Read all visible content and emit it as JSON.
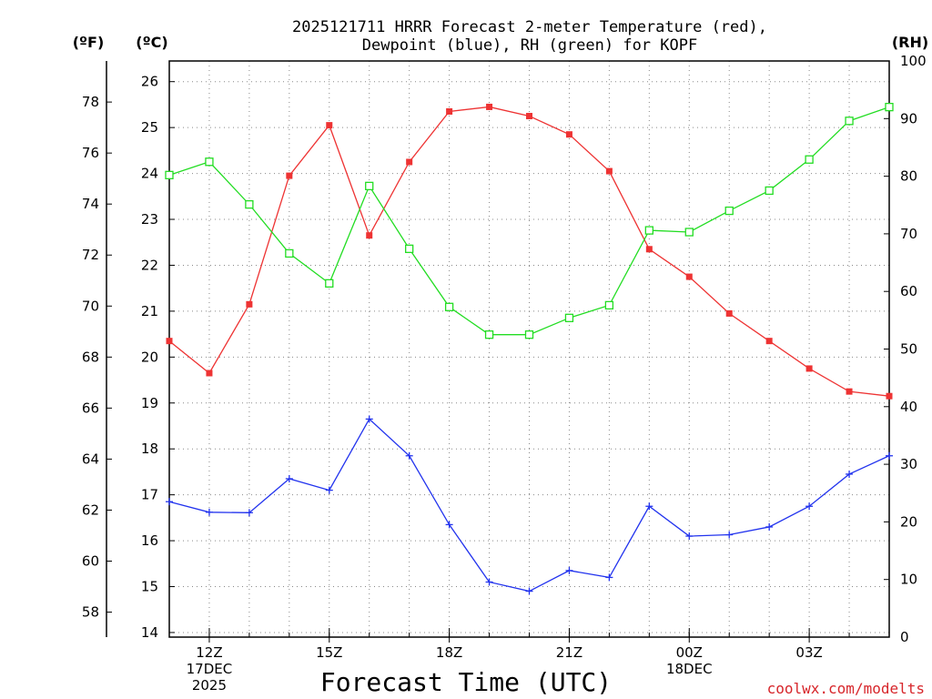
{
  "chart_data": {
    "type": "line",
    "title_line1": "2025121711 HRRR Forecast 2-meter Temperature (red),",
    "title_line2": "Dewpoint (blue), RH (green) for KOPF",
    "unit_f": "(ºF)",
    "unit_c": "(ºC)",
    "unit_rh": "(RH)",
    "xlabel": "Forecast Time (UTC)",
    "credit": "coolwx.com/modelts",
    "x_hours": [
      11,
      12,
      13,
      14,
      15,
      16,
      17,
      18,
      19,
      20,
      21,
      22,
      23,
      24,
      25,
      26,
      27,
      28,
      29
    ],
    "x_ticks": [
      {
        "hour": 12,
        "lines": [
          "12Z",
          "17DEC",
          "2025"
        ]
      },
      {
        "hour": 15,
        "lines": [
          "15Z"
        ]
      },
      {
        "hour": 18,
        "lines": [
          "18Z"
        ]
      },
      {
        "hour": 21,
        "lines": [
          "21Z"
        ]
      },
      {
        "hour": 24,
        "lines": [
          "00Z",
          "18DEC"
        ]
      },
      {
        "hour": 27,
        "lines": [
          "03Z"
        ]
      }
    ],
    "celsius_axis": {
      "min": 13.9,
      "max": 26.45,
      "ticks": [
        14,
        15,
        16,
        17,
        18,
        19,
        20,
        21,
        22,
        23,
        24,
        25,
        26
      ]
    },
    "fahrenheit_ticks": [
      58,
      60,
      62,
      64,
      66,
      68,
      70,
      72,
      74,
      76,
      78
    ],
    "rh_axis": {
      "min": 0,
      "max": 100,
      "ticks": [
        0,
        10,
        20,
        30,
        40,
        50,
        60,
        70,
        80,
        90,
        100
      ]
    },
    "series": [
      {
        "name": "2-meter Temperature",
        "axis": "celsius",
        "color": "#ee3333",
        "marker": "filled-square",
        "values": [
          20.35,
          19.65,
          21.15,
          23.95,
          25.05,
          22.65,
          24.25,
          25.35,
          25.45,
          25.25,
          24.85,
          24.05,
          22.35,
          21.75,
          20.95,
          20.35,
          19.75,
          19.25,
          19.15
        ]
      },
      {
        "name": "Dewpoint",
        "axis": "celsius",
        "color": "#2233ee",
        "marker": "plus",
        "values": [
          16.85,
          16.62,
          16.61,
          17.35,
          17.1,
          18.65,
          17.85,
          16.35,
          15.1,
          14.9,
          15.35,
          15.2,
          16.75,
          16.1,
          16.13,
          16.3,
          16.75,
          17.45,
          17.85
        ]
      },
      {
        "name": "Relative Humidity",
        "axis": "rh",
        "color": "#22dd22",
        "marker": "open-square",
        "values": [
          80.2,
          82.5,
          75.1,
          66.6,
          61.4,
          78.3,
          67.4,
          57.3,
          52.5,
          52.5,
          55.4,
          57.6,
          70.6,
          70.3,
          74.0,
          77.5,
          82.9,
          89.6,
          92.0
        ]
      }
    ]
  }
}
